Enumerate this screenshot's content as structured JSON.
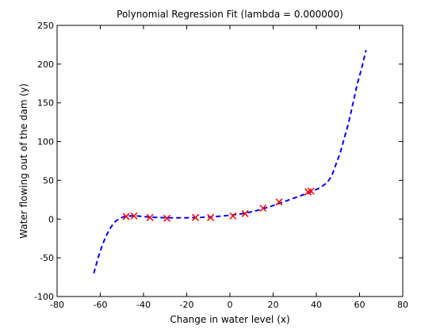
{
  "chart_data": {
    "type": "scatter",
    "title": "Polynomial Regression Fit (lambda = 0.000000)",
    "xlabel": "Change in water level (x)",
    "ylabel": "Water flowing out of the dam (y)",
    "xlim": [
      -80,
      80
    ],
    "ylim": [
      -100,
      250
    ],
    "xticks": [
      -80,
      -60,
      -40,
      -20,
      0,
      20,
      40,
      60,
      80
    ],
    "yticks": [
      -100,
      -50,
      0,
      50,
      100,
      150,
      200,
      250
    ],
    "grid": false,
    "legend": "none",
    "series": [
      {
        "kind": "points",
        "marker": "x",
        "color": "#ff0000",
        "x": [
          -48.06,
          -44.38,
          -37.0,
          -29.15,
          -15.94,
          -8.94,
          1.39,
          7.01,
          15.31,
          22.76,
          36.19,
          37.49
        ],
        "y": [
          3.32,
          4.0,
          2.0,
          1.0,
          2.0,
          2.0,
          4.0,
          7.0,
          14.0,
          22.0,
          35.0,
          36.0
        ]
      },
      {
        "kind": "fit",
        "style": "dashed",
        "color": "#0000ff",
        "x": [
          -63,
          -61,
          -59,
          -57,
          -55,
          -53,
          -51,
          -49,
          -47,
          -45,
          -43,
          -41,
          -39,
          -37,
          -35,
          -33,
          -31,
          -29,
          -27,
          -25,
          -23,
          -21,
          -19,
          -17,
          -15,
          -13,
          -11,
          -9,
          -7,
          -5,
          -3,
          -1,
          1,
          3,
          5,
          7,
          9,
          11,
          13,
          15,
          17,
          19,
          21,
          23,
          25,
          27,
          29,
          31,
          33,
          35,
          37,
          39,
          41,
          43,
          45,
          47,
          49,
          51,
          53,
          55,
          57,
          59,
          61,
          63
        ],
        "y": [
          -70,
          -50,
          -33,
          -20,
          -10,
          -3,
          1,
          3,
          4,
          4,
          4,
          3.5,
          3,
          2.5,
          2.2,
          2,
          1.8,
          1.7,
          1.6,
          1.6,
          1.6,
          1.6,
          1.7,
          1.8,
          2,
          2.2,
          2.5,
          2.8,
          3.2,
          3.6,
          4.1,
          4.6,
          5.2,
          5.9,
          6.7,
          7.6,
          8.7,
          10,
          11.4,
          13,
          14.7,
          16.5,
          18.4,
          20.4,
          22.4,
          24.4,
          26.4,
          28.4,
          30.4,
          32.4,
          34.5,
          37,
          39.5,
          43,
          47,
          55,
          70,
          85,
          105,
          125,
          150,
          175,
          195,
          218
        ]
      }
    ]
  }
}
